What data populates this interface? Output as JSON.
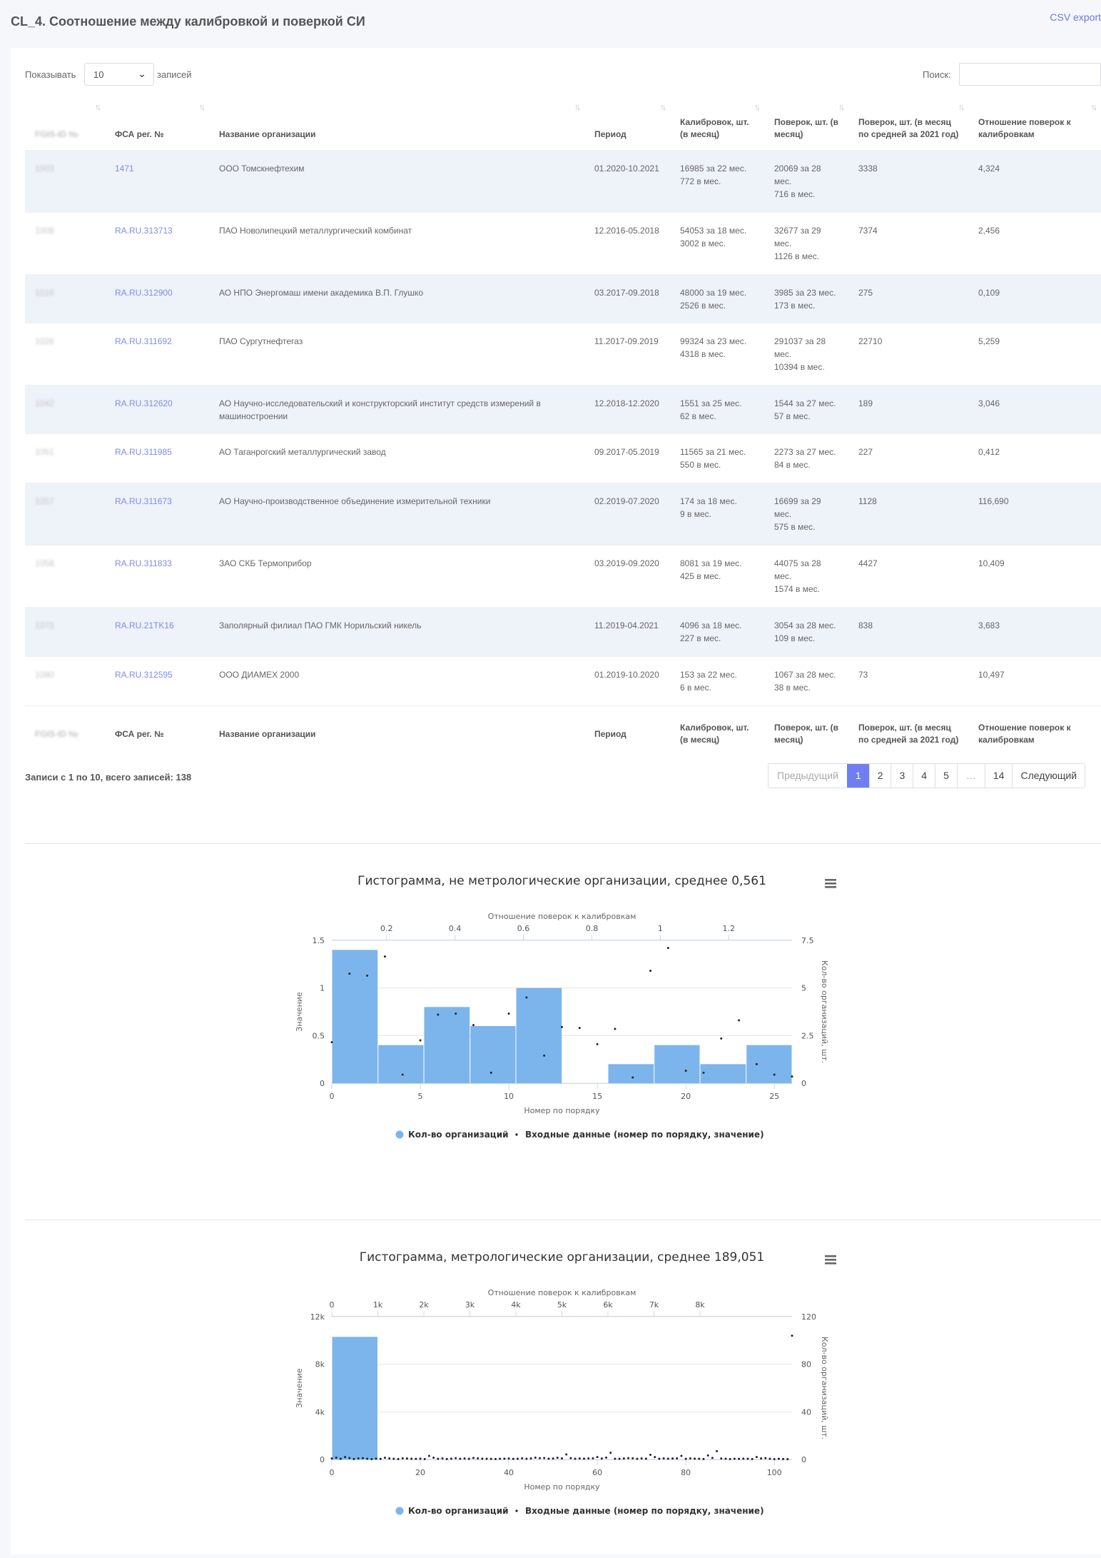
{
  "header": {
    "title": "CL_4. Соотношение между калибровкой и поверкой СИ",
    "csv_export": "CSV export"
  },
  "controls": {
    "show_label": "Показывать",
    "length_value": "10",
    "records_label": "записей",
    "search_label": "Поиск:"
  },
  "table": {
    "columns": [
      {
        "key": "id",
        "label": "FGIS-ID №",
        "blurred": true
      },
      {
        "key": "fsa",
        "label": "ФСА рег. №"
      },
      {
        "key": "org",
        "label": "Название организации"
      },
      {
        "key": "period",
        "label": "Период"
      },
      {
        "key": "calib",
        "label": "Калибровок, шт. (в месяц)"
      },
      {
        "key": "verif",
        "label": "Поверок, шт. (в месяц)"
      },
      {
        "key": "verif2021",
        "label": "Поверок, шт. (в месяц по средней за 2021 год)"
      },
      {
        "key": "ratio",
        "label": "Отношение поверок к калибровкам"
      }
    ],
    "rows": [
      {
        "id": "1003",
        "fsa": "1471",
        "org": "ООО Томскнефтехим",
        "period": "01.2020-10.2021",
        "calib": [
          "16985 за 22 мес.",
          "772 в мес."
        ],
        "verif": [
          "20069 за 28",
          "мес.",
          "716 в мес."
        ],
        "verif2021": "3338",
        "ratio": "4,324"
      },
      {
        "id": "1008",
        "fsa": "RA.RU.313713",
        "org": "ПАО Новолипецкий металлургический комбинат",
        "period": "12.2016-05.2018",
        "calib": [
          "54053 за 18 мес.",
          "3002 в мес."
        ],
        "verif": [
          "32677 за 29",
          "мес.",
          "1126 в мес."
        ],
        "verif2021": "7374",
        "ratio": "2,456"
      },
      {
        "id": "1016",
        "fsa": "RA.RU.312900",
        "org": "АО НПО Энергомаш имени академика В.П. Глушко",
        "period": "03.2017-09.2018",
        "calib": [
          "48000 за 19 мес.",
          "2526 в мес."
        ],
        "verif": [
          "3985 за 23 мес.",
          "173 в мес."
        ],
        "verif2021": "275",
        "ratio": "0,109"
      },
      {
        "id": "1026",
        "fsa": "RA.RU.311692",
        "org": "ПАО Сургутнефтегаз",
        "period": "11.2017-09.2019",
        "calib": [
          "99324 за 23 мес.",
          "4318 в мес."
        ],
        "verif": [
          "291037 за 28",
          "мес.",
          "10394 в мес."
        ],
        "verif2021": "22710",
        "ratio": "5,259"
      },
      {
        "id": "1042",
        "fsa": "RA.RU.312620",
        "org": "АО Научно-исследовательский и конструкторский институт средств измерений в машиностроении",
        "period": "12.2018-12.2020",
        "calib": [
          "1551 за 25 мес.",
          "62 в мес."
        ],
        "verif": [
          "1544 за 27 мес.",
          "57 в мес."
        ],
        "verif2021": "189",
        "ratio": "3,046"
      },
      {
        "id": "1051",
        "fsa": "RA.RU.311985",
        "org": "АО Таганрогский металлургический завод",
        "period": "09.2017-05.2019",
        "calib": [
          "11565 за 21 мес.",
          "550 в мес."
        ],
        "verif": [
          "2273 за 27 мес.",
          "84 в мес."
        ],
        "verif2021": "227",
        "ratio": "0,412"
      },
      {
        "id": "1057",
        "fsa": "RA.RU.311673",
        "org": "АО Научно-производственное объединение измерительной техники",
        "period": "02.2019-07.2020",
        "calib": [
          "174 за 18 мес.",
          "9 в мес."
        ],
        "verif": [
          "16699 за 29",
          "мес.",
          "575 в мес."
        ],
        "verif2021": "1128",
        "ratio": "116,690"
      },
      {
        "id": "1058",
        "fsa": "RA.RU.311833",
        "org": "ЗАО СКБ Термоприбор",
        "period": "03.2019-09.2020",
        "calib": [
          "8081 за 19 мес.",
          "425 в мес."
        ],
        "verif": [
          "44075 за 28",
          "мес.",
          "1574 в мес."
        ],
        "verif2021": "4427",
        "ratio": "10,409"
      },
      {
        "id": "1073",
        "fsa": "RA.RU.21TK16",
        "org": "Заполярный филиал ПАО ГМК Норильский никель",
        "period": "11.2019-04.2021",
        "calib": [
          "4096 за 18 мес.",
          "227 в мес."
        ],
        "verif": [
          "3054 за 28 мес.",
          "109 в мес."
        ],
        "verif2021": "838",
        "ratio": "3,683"
      },
      {
        "id": "1080",
        "fsa": "RA.RU.312595",
        "org": "ООО ДИАМЕХ 2000",
        "period": "01.2019-10.2020",
        "calib": [
          "153 за 22 мес.",
          "6 в мес."
        ],
        "verif": [
          "1067 за 28 мес.",
          "38 в мес."
        ],
        "verif2021": "73",
        "ratio": "10,497"
      }
    ]
  },
  "info": "Записи с 1 по 10, всего записей: 138",
  "pagination": {
    "prev": "Предыдущий",
    "pages": [
      "1",
      "2",
      "3",
      "4",
      "5",
      "…",
      "14"
    ],
    "active": "1",
    "next": "Следующий"
  },
  "chart_data": [
    {
      "type": "bar",
      "title": "Гистограмма, не метрологические организации, среднее 0,561",
      "xlabel": "Номер по порядку",
      "ylabel": "Значение",
      "x2label": "Отношение поверок к калибровкам",
      "y2label": "Кол-во организаций, шт.",
      "xlim": [
        0,
        26
      ],
      "ylim": [
        0,
        1.5
      ],
      "x2lim": [
        0.04,
        1.385
      ],
      "y2lim": [
        0,
        7.5
      ],
      "xticks": [
        "0",
        "5",
        "10",
        "15",
        "20",
        "25"
      ],
      "yticks": [
        "0",
        "0.5",
        "1",
        "1.5"
      ],
      "x2ticks": [
        "0.2",
        "0.4",
        "0.6",
        "0.8",
        "1",
        "1.2"
      ],
      "y2ticks": [
        "0",
        "2.5",
        "5",
        "7.5"
      ],
      "bin_edges": [
        0.04,
        0.175,
        0.309,
        0.444,
        0.578,
        0.713,
        0.847,
        0.982,
        1.116,
        1.251,
        1.385
      ],
      "bin_counts": [
        7,
        2,
        4,
        3,
        5,
        0,
        1,
        2,
        1,
        2
      ],
      "points_x": [
        0,
        1,
        2,
        3,
        4,
        5,
        6,
        7,
        8,
        9,
        10,
        11,
        12,
        13,
        14,
        15,
        16,
        17,
        18,
        19,
        20,
        21,
        22,
        23,
        24,
        25,
        26
      ],
      "points_y": [
        0.43,
        1.15,
        1.13,
        1.33,
        0.09,
        0.45,
        0.72,
        0.73,
        0.61,
        0.11,
        0.73,
        0.9,
        0.29,
        0.59,
        0.58,
        0.41,
        0.57,
        0.06,
        1.18,
        1.42,
        0.13,
        0.11,
        0.47,
        0.66,
        0.2,
        0.09,
        0.07
      ],
      "legend": [
        "Кол-во организаций",
        "Входные данные (номер по порядку, значение)"
      ],
      "legend_position": "bottom",
      "bar_color": "#7cb5ec",
      "point_color": "#222222"
    },
    {
      "type": "bar",
      "title": "Гистограмма, метрологические организации, среднее 189,051",
      "xlabel": "Номер по порядку",
      "ylabel": "Значение",
      "x2label": "Отношение поверок к калибровкам",
      "y2label": "Кол-во организаций, шт.",
      "xlim": [
        0,
        104
      ],
      "ylim": [
        0,
        12000
      ],
      "x2lim": [
        0,
        10000
      ],
      "y2lim": [
        0,
        120
      ],
      "xticks": [
        "0",
        "20",
        "40",
        "60",
        "80",
        "100"
      ],
      "yticks": [
        "0",
        "4k",
        "8k",
        "12k"
      ],
      "x2ticks": [
        "0",
        "1k",
        "2k",
        "3k",
        "4k",
        "5k",
        "6k",
        "7k",
        "8k"
      ],
      "y2ticks": [
        "0",
        "40",
        "80",
        "120"
      ],
      "bin_edges": [
        0,
        1000
      ],
      "bin_counts": [
        103
      ],
      "points_x": [
        0,
        1,
        2,
        3,
        4,
        5,
        6,
        7,
        8,
        9,
        10,
        11,
        12,
        13,
        14,
        15,
        16,
        17,
        18,
        19,
        20,
        21,
        22,
        23,
        24,
        25,
        26,
        27,
        28,
        29,
        30,
        31,
        32,
        33,
        34,
        35,
        36,
        37,
        38,
        39,
        40,
        41,
        42,
        43,
        44,
        45,
        46,
        47,
        48,
        49,
        50,
        51,
        52,
        53,
        54,
        55,
        56,
        57,
        58,
        59,
        60,
        61,
        62,
        63,
        64,
        65,
        66,
        67,
        68,
        69,
        70,
        71,
        72,
        73,
        74,
        75,
        76,
        77,
        78,
        79,
        80,
        81,
        82,
        83,
        84,
        85,
        86,
        87,
        88,
        89,
        90,
        91,
        92,
        93,
        94,
        95,
        96,
        97,
        98,
        99,
        100,
        101,
        102,
        103,
        104
      ],
      "points_y": [
        80,
        150,
        60,
        200,
        120,
        40,
        90,
        110,
        60,
        30,
        70,
        50,
        140,
        90,
        60,
        40,
        100,
        80,
        60,
        50,
        70,
        40,
        300,
        150,
        60,
        90,
        40,
        70,
        110,
        60,
        80,
        60,
        130,
        90,
        70,
        60,
        50,
        40,
        60,
        70,
        80,
        50,
        60,
        100,
        60,
        90,
        150,
        110,
        120,
        70,
        80,
        140,
        90,
        420,
        110,
        60,
        80,
        70,
        90,
        100,
        200,
        80,
        160,
        560,
        60,
        60,
        80,
        110,
        100,
        60,
        90,
        70,
        390,
        200,
        60,
        90,
        70,
        80,
        90,
        300,
        60,
        90,
        70,
        60,
        40,
        340,
        130,
        700,
        80,
        60,
        40,
        60,
        50,
        70,
        60,
        40,
        200,
        90,
        110,
        60,
        30,
        60,
        40,
        30,
        10400
      ],
      "legend": [
        "Кол-во организаций",
        "Входные данные (номер по порядку, значение)"
      ],
      "legend_position": "bottom",
      "bar_color": "#7cb5ec",
      "point_color": "#222222"
    }
  ]
}
